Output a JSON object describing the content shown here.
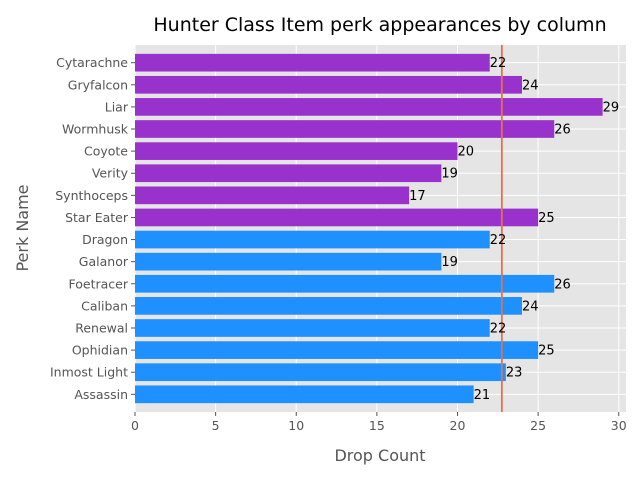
{
  "chart_data": {
    "type": "bar",
    "orientation": "horizontal",
    "title": "Hunter Class Item perk appearances by column",
    "xlabel": "Drop Count",
    "ylabel": "Perk Name",
    "xlim": [
      0,
      30.45
    ],
    "xticks": [
      "0",
      "5",
      "10",
      "15",
      "20",
      "25",
      "30"
    ],
    "grid": true,
    "categories": [
      "Cytarachne",
      "Gryfalcon",
      "Liar",
      "Wormhusk",
      "Coyote",
      "Verity",
      "Synthoceps",
      "Star Eater",
      "Dragon",
      "Galanor",
      "Foetracer",
      "Caliban",
      "Renewal",
      "Ophidian",
      "Inmost Light",
      "Assassin"
    ],
    "values": [
      22,
      24,
      29,
      26,
      20,
      19,
      17,
      25,
      22,
      19,
      26,
      24,
      22,
      25,
      23,
      21
    ],
    "groups": [
      "second",
      "second",
      "second",
      "second",
      "second",
      "second",
      "second",
      "second",
      "first",
      "first",
      "first",
      "first",
      "first",
      "first",
      "first",
      "first"
    ],
    "group_colors": {
      "first": "#1e90ff",
      "second": "#9932cc"
    },
    "reference_line": {
      "value": 22.75,
      "color": "#e2714d"
    },
    "background_color": "#e5e5e5",
    "grid_color": "#ffffff"
  }
}
